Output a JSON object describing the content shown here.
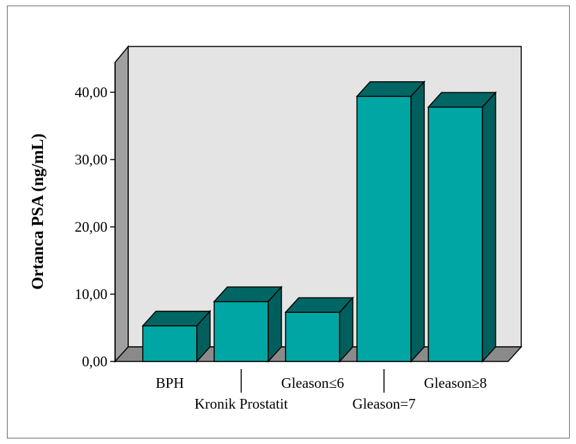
{
  "chart_data": {
    "type": "bar",
    "title": "",
    "xlabel": "",
    "ylabel": "Ortanca PSA (ng/mL)",
    "categories": [
      "BPH",
      "Kronik Prostatit",
      "Gleason≤6",
      "Gleason=7",
      "Gleason≥8"
    ],
    "values": [
      5.3,
      8.9,
      7.3,
      39.4,
      37.8
    ],
    "ylim": [
      0,
      40
    ],
    "yticks": [
      "0,00",
      "10,00",
      "20,00",
      "30,00",
      "40,00"
    ],
    "ytick_values": [
      0,
      10,
      20,
      30,
      40
    ],
    "style": "3d",
    "grid": false,
    "legend": "none",
    "colors": {
      "bar_front": "#00a6a3",
      "bar_top": "#006663",
      "bar_side": "#005f5c",
      "back_wall": "#e4e4e4",
      "side_wall": "#a0a0a0",
      "floor": "#8a8a8a"
    }
  }
}
